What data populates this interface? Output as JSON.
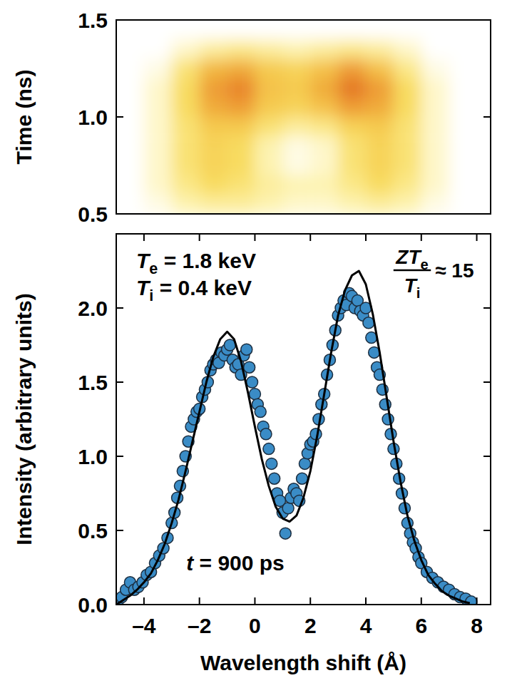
{
  "chart_data": [
    {
      "type": "heatmap",
      "y_label": "Time (ns)",
      "xlim": [
        -5,
        8.5
      ],
      "ylim": [
        0.5,
        1.5
      ],
      "yticks": [
        {
          "value": 0.5,
          "label": "0.5"
        },
        {
          "value": 1.0,
          "label": "1.0"
        },
        {
          "value": 1.5,
          "label": "1.5"
        }
      ],
      "tick_labels": "y",
      "grid": false,
      "color_range": [
        0,
        1
      ],
      "x_bins": [
        -5,
        -4,
        -3,
        -2,
        -1,
        0,
        1,
        2,
        3,
        4,
        5,
        6,
        7,
        8,
        8.5
      ],
      "y_bins": [
        0.5,
        0.6,
        0.7,
        0.8,
        0.9,
        1.0,
        1.1,
        1.2,
        1.3,
        1.4,
        1.5
      ],
      "cells": [
        [
          0,
          0.05,
          0.15,
          0.2,
          0.2,
          0.15,
          0.1,
          0.1,
          0.15,
          0.2,
          0.15,
          0.05,
          0,
          0
        ],
        [
          0,
          0.1,
          0.25,
          0.35,
          0.3,
          0.2,
          0.15,
          0.15,
          0.25,
          0.35,
          0.25,
          0.1,
          0,
          0
        ],
        [
          0,
          0.1,
          0.3,
          0.4,
          0.35,
          0.15,
          0.05,
          0.1,
          0.3,
          0.4,
          0.3,
          0.1,
          0,
          0
        ],
        [
          0,
          0.1,
          0.3,
          0.4,
          0.35,
          0.15,
          0.05,
          0.1,
          0.3,
          0.4,
          0.3,
          0.1,
          0,
          0
        ],
        [
          0,
          0.1,
          0.3,
          0.45,
          0.45,
          0.3,
          0.2,
          0.25,
          0.4,
          0.45,
          0.3,
          0.1,
          0,
          0
        ],
        [
          0,
          0.1,
          0.35,
          0.6,
          0.65,
          0.45,
          0.4,
          0.5,
          0.65,
          0.6,
          0.35,
          0.1,
          0,
          0
        ],
        [
          0,
          0.1,
          0.35,
          0.65,
          0.75,
          0.5,
          0.45,
          0.6,
          0.8,
          0.65,
          0.35,
          0.1,
          0,
          0
        ],
        [
          0,
          0.05,
          0.3,
          0.55,
          0.6,
          0.45,
          0.4,
          0.5,
          0.65,
          0.5,
          0.25,
          0.05,
          0,
          0
        ],
        [
          0,
          0,
          0.1,
          0.2,
          0.25,
          0.2,
          0.15,
          0.2,
          0.25,
          0.2,
          0.1,
          0,
          0,
          0
        ],
        [
          0,
          0,
          0,
          0,
          0,
          0,
          0,
          0,
          0,
          0,
          0,
          0,
          0,
          0
        ]
      ]
    },
    {
      "type": "scatter",
      "x_label": "Wavelength shift (Å)",
      "y_label": "Intensity (arbitrary units)",
      "xlim": [
        -5,
        8.5
      ],
      "ylim": [
        0,
        2.5
      ],
      "xticks": [
        {
          "value": -4,
          "label": "–4"
        },
        {
          "value": -2,
          "label": "–2"
        },
        0,
        2,
        4,
        6,
        8
      ],
      "yticks": [
        {
          "value": 0,
          "label": "0.0"
        },
        {
          "value": 0.5,
          "label": "0.5"
        },
        {
          "value": 1.0,
          "label": "1.0"
        },
        {
          "value": 1.5,
          "label": "1.5"
        },
        {
          "value": 2.0,
          "label": "2.0"
        }
      ],
      "grid": false,
      "annotations": [
        {
          "text": "Te = 1.8 keV"
        },
        {
          "text": "Ti = 0.4 keV"
        },
        {
          "numerator": "ZTe",
          "denominator": "Ti",
          "text": "≈ 15"
        },
        {
          "text": "t = 900 ps"
        }
      ],
      "series": [
        {
          "type": "scatter",
          "marker": "circle",
          "color": "#3a8cc6",
          "x": [
            -4.95,
            -4.8,
            -4.65,
            -4.5,
            -4.35,
            -4.2,
            -4.05,
            -3.9,
            -3.75,
            -3.6,
            -3.45,
            -3.3,
            -3.15,
            -3.0,
            -2.9,
            -2.8,
            -2.7,
            -2.6,
            -2.5,
            -2.4,
            -2.3,
            -2.2,
            -2.1,
            -2.0,
            -1.9,
            -1.8,
            -1.7,
            -1.6,
            -1.5,
            -1.4,
            -1.3,
            -1.2,
            -1.1,
            -1.0,
            -0.9,
            -0.8,
            -0.7,
            -0.6,
            -0.5,
            -0.4,
            -0.3,
            -0.2,
            -0.1,
            0.0,
            0.1,
            0.2,
            0.3,
            0.4,
            0.5,
            0.6,
            0.7,
            0.8,
            0.9,
            1.0,
            1.1,
            1.2,
            1.3,
            1.4,
            1.5,
            1.6,
            1.7,
            1.8,
            1.9,
            2.0,
            2.1,
            2.2,
            2.3,
            2.4,
            2.5,
            2.6,
            2.7,
            2.8,
            2.9,
            3.0,
            3.1,
            3.2,
            3.3,
            3.4,
            3.5,
            3.6,
            3.7,
            3.8,
            3.9,
            4.0,
            4.1,
            4.2,
            4.3,
            4.4,
            4.5,
            4.6,
            4.7,
            4.8,
            4.9,
            5.0,
            5.1,
            5.2,
            5.3,
            5.4,
            5.5,
            5.6,
            5.7,
            5.8,
            5.9,
            6.0,
            6.2,
            6.4,
            6.6,
            6.8,
            7.0,
            7.2,
            7.4,
            7.6,
            7.8
          ],
          "values": [
            0.02,
            0.05,
            0.1,
            0.15,
            0.1,
            0.12,
            0.15,
            0.2,
            0.22,
            0.28,
            0.33,
            0.38,
            0.45,
            0.55,
            0.62,
            0.72,
            0.8,
            0.9,
            1.0,
            1.1,
            1.2,
            1.25,
            1.3,
            1.32,
            1.4,
            1.45,
            1.5,
            1.58,
            1.62,
            1.65,
            1.63,
            1.7,
            1.68,
            1.72,
            1.75,
            1.65,
            1.6,
            1.62,
            1.55,
            1.68,
            1.72,
            1.6,
            1.5,
            1.42,
            1.35,
            1.3,
            1.2,
            1.15,
            1.05,
            0.95,
            0.85,
            0.75,
            0.7,
            0.62,
            0.48,
            0.65,
            0.72,
            0.78,
            0.75,
            0.7,
            0.85,
            0.95,
            1.02,
            1.08,
            1.1,
            1.15,
            1.25,
            1.35,
            1.42,
            1.55,
            1.65,
            1.75,
            1.85,
            1.95,
            2.0,
            2.05,
            2.02,
            2.1,
            2.08,
            2.0,
            2.05,
            1.98,
            1.95,
            2.0,
            1.9,
            1.8,
            1.7,
            1.6,
            1.55,
            1.45,
            1.35,
            1.25,
            1.15,
            1.05,
            0.95,
            0.85,
            0.75,
            0.65,
            0.55,
            0.48,
            0.42,
            0.38,
            0.32,
            0.28,
            0.22,
            0.18,
            0.15,
            0.12,
            0.1,
            0.07,
            0.05,
            0.04,
            0.02
          ]
        },
        {
          "type": "line",
          "line_style": "solid",
          "color": "#000000",
          "x": [
            -5,
            -4.75,
            -4.5,
            -4.25,
            -4,
            -3.75,
            -3.5,
            -3.25,
            -3,
            -2.75,
            -2.5,
            -2.25,
            -2,
            -1.75,
            -1.5,
            -1.25,
            -1,
            -0.75,
            -0.5,
            -0.25,
            0,
            0.25,
            0.5,
            0.75,
            1,
            1.25,
            1.5,
            1.75,
            2,
            2.25,
            2.5,
            2.75,
            3,
            3.25,
            3.5,
            3.75,
            4,
            4.25,
            4.5,
            4.75,
            5,
            5.25,
            5.5,
            5.75,
            6,
            6.25,
            6.5,
            6.75,
            7,
            7.25,
            7.5,
            7.75
          ],
          "values": [
            0.0,
            0.03,
            0.06,
            0.1,
            0.15,
            0.21,
            0.3,
            0.41,
            0.55,
            0.71,
            0.9,
            1.1,
            1.3,
            1.5,
            1.67,
            1.79,
            1.84,
            1.79,
            1.64,
            1.43,
            1.2,
            0.98,
            0.8,
            0.66,
            0.58,
            0.56,
            0.6,
            0.72,
            0.9,
            1.14,
            1.42,
            1.7,
            1.95,
            2.12,
            2.22,
            2.25,
            2.16,
            1.96,
            1.7,
            1.4,
            1.1,
            0.83,
            0.6,
            0.43,
            0.3,
            0.2,
            0.14,
            0.09,
            0.06,
            0.04,
            0.02,
            0.01
          ]
        }
      ]
    }
  ]
}
